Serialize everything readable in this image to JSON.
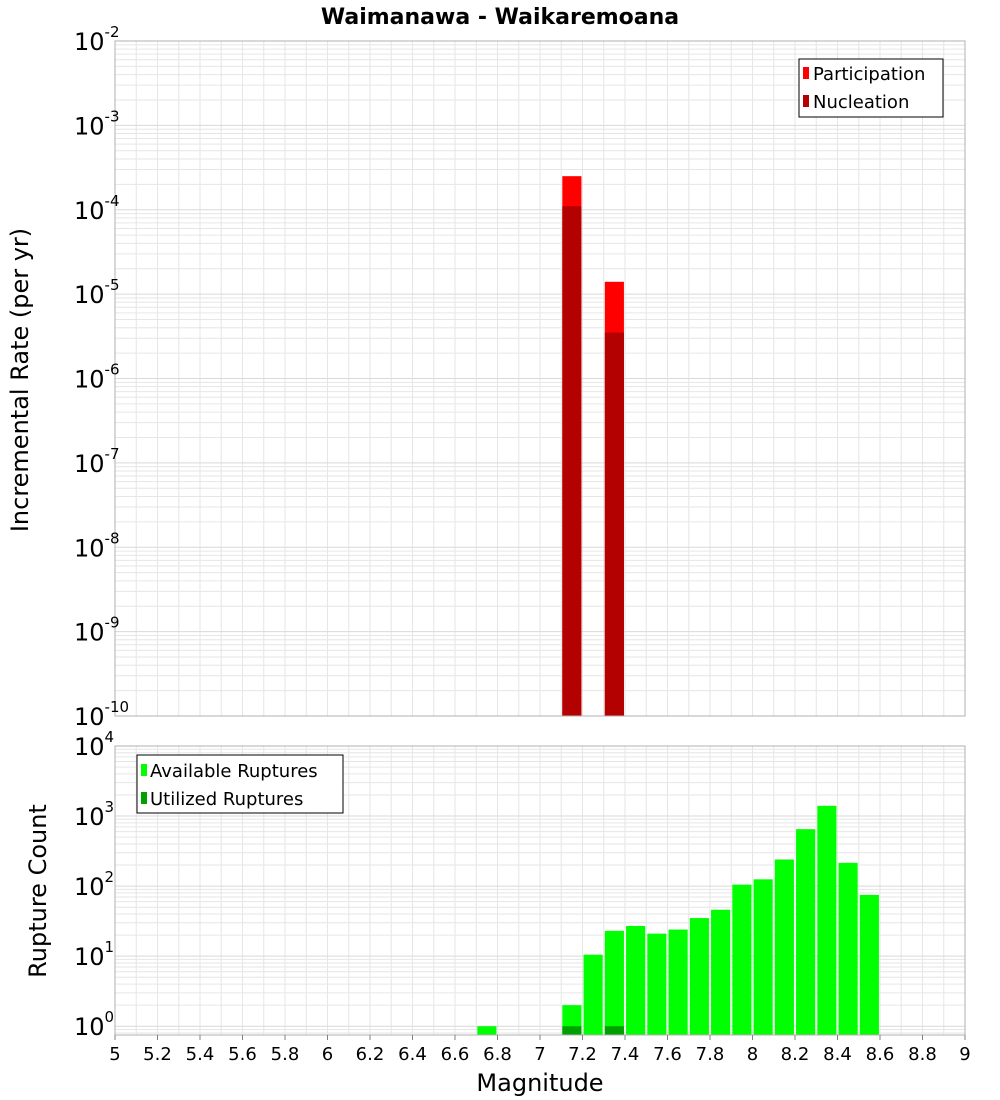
{
  "title": "Waimanawa - Waikaremoana",
  "colors": {
    "participation": "#ff0000",
    "nucleation": "#b30000",
    "available": "#00ff00",
    "utilized": "#00a000",
    "grid": "#e6e6e6",
    "frame": "#b0b0b0"
  },
  "chart_data": [
    {
      "type": "bar",
      "ylabel": "Incremental Rate (per yr)",
      "yscale": "log",
      "ylim": [
        1e-10,
        0.01
      ],
      "xlim": [
        5,
        9
      ],
      "grid": true,
      "legend": "top-right",
      "series": [
        {
          "name": "Participation",
          "color": "#ff0000",
          "points": [
            {
              "x": 7.15,
              "y": 0.00025
            },
            {
              "x": 7.35,
              "y": 1.4e-05
            }
          ]
        },
        {
          "name": "Nucleation",
          "color": "#b30000",
          "points": [
            {
              "x": 7.15,
              "y": 0.00011
            },
            {
              "x": 7.35,
              "y": 3.5e-06
            }
          ]
        }
      ]
    },
    {
      "type": "bar",
      "ylabel": "Rupture Count",
      "xlabel": "Magnitude",
      "yscale": "log",
      "ylim": [
        0.75,
        10000
      ],
      "xlim": [
        5,
        9
      ],
      "grid": true,
      "legend": "top-left",
      "xticks": [
        "5",
        "5.2",
        "5.4",
        "5.6",
        "5.8",
        "6",
        "6.2",
        "6.4",
        "6.6",
        "6.8",
        "7",
        "7.2",
        "7.4",
        "7.6",
        "7.8",
        "8",
        "8.2",
        "8.4",
        "8.6",
        "8.8",
        "9"
      ],
      "series": [
        {
          "name": "Available Ruptures",
          "color": "#00ff00",
          "points": [
            {
              "x": 6.75,
              "y": 1
            },
            {
              "x": 7.15,
              "y": 2
            },
            {
              "x": 7.25,
              "y": 10.5
            },
            {
              "x": 7.35,
              "y": 23
            },
            {
              "x": 7.45,
              "y": 27
            },
            {
              "x": 7.55,
              "y": 21
            },
            {
              "x": 7.65,
              "y": 24
            },
            {
              "x": 7.75,
              "y": 35
            },
            {
              "x": 7.85,
              "y": 46
            },
            {
              "x": 7.95,
              "y": 105
            },
            {
              "x": 8.05,
              "y": 125
            },
            {
              "x": 8.15,
              "y": 240
            },
            {
              "x": 8.25,
              "y": 650
            },
            {
              "x": 8.35,
              "y": 1400
            },
            {
              "x": 8.45,
              "y": 215
            },
            {
              "x": 8.55,
              "y": 75
            }
          ]
        },
        {
          "name": "Utilized Ruptures",
          "color": "#00a000",
          "points": [
            {
              "x": 7.15,
              "y": 1
            },
            {
              "x": 7.35,
              "y": 1
            }
          ]
        }
      ]
    }
  ]
}
